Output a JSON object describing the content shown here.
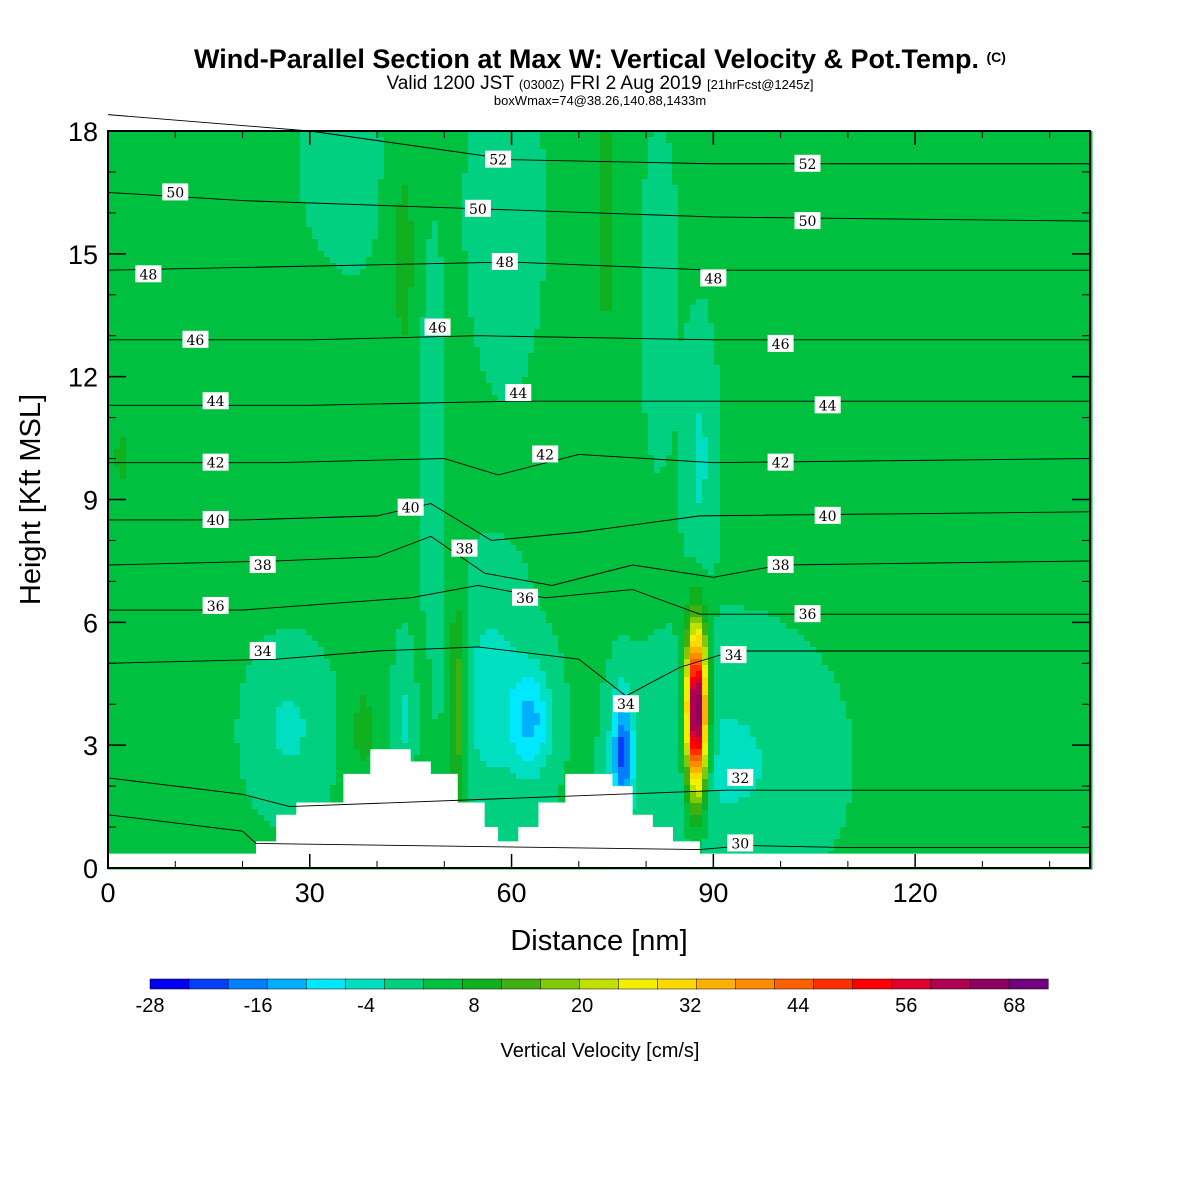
{
  "header": {
    "title": "Wind-Parallel Section at Max W: Vertical Velocity & Pot.Temp.",
    "copyright": "(C)",
    "valid_prefix": "Valid 1200 JST",
    "valid_utc": "(0300Z)",
    "valid_date": "FRI 2 Aug 2019",
    "forecast": "[21hrFcst@1245z]",
    "boxwmax": "boxWmax=74@38.26,140.88,1433m"
  },
  "chart_data": {
    "type": "contour-section",
    "xlabel": "Distance [nm]",
    "ylabel": "Height [Kft MSL]",
    "xlim": [
      0,
      146
    ],
    "ylim": [
      0,
      18
    ],
    "xticks": [
      0,
      30,
      60,
      90,
      120
    ],
    "yticks": [
      0,
      3,
      6,
      9,
      12,
      15,
      18
    ],
    "grid": false,
    "colorbar": {
      "label": "Vertical Velocity [cm/s]",
      "placement": "bottom",
      "tick_labels": [
        -28,
        -16,
        -4,
        8,
        20,
        32,
        44,
        56,
        68
      ],
      "colors": [
        "#0000f0",
        "#0040f8",
        "#0080ff",
        "#00b0ff",
        "#00e8ff",
        "#00e0c0",
        "#00d080",
        "#00c040",
        "#10b020",
        "#40b010",
        "#80c808",
        "#c0e000",
        "#f0f000",
        "#ffd800",
        "#ffb000",
        "#ff8c00",
        "#ff6000",
        "#ff3000",
        "#ff0000",
        "#e00030",
        "#b00050",
        "#900060",
        "#700080"
      ]
    },
    "terrain_kft": [
      [
        0,
        0.35
      ],
      [
        22,
        0.35
      ],
      [
        22,
        0.65
      ],
      [
        25,
        0.65
      ],
      [
        25,
        1.3
      ],
      [
        28,
        1.3
      ],
      [
        28,
        1.6
      ],
      [
        35,
        1.6
      ],
      [
        35,
        2.3
      ],
      [
        39,
        2.3
      ],
      [
        39,
        2.9
      ],
      [
        45,
        2.9
      ],
      [
        45,
        2.6
      ],
      [
        48,
        2.6
      ],
      [
        48,
        2.3
      ],
      [
        52,
        2.3
      ],
      [
        52,
        1.6
      ],
      [
        56,
        1.6
      ],
      [
        56,
        1.0
      ],
      [
        58,
        1.0
      ],
      [
        58,
        0.65
      ],
      [
        61,
        0.65
      ],
      [
        61,
        1.0
      ],
      [
        64,
        1.0
      ],
      [
        64,
        1.6
      ],
      [
        68,
        1.6
      ],
      [
        68,
        2.3
      ],
      [
        75,
        2.3
      ],
      [
        75,
        2.0
      ],
      [
        78,
        2.0
      ],
      [
        78,
        1.3
      ],
      [
        81,
        1.3
      ],
      [
        81,
        1.0
      ],
      [
        84,
        1.0
      ],
      [
        84,
        0.65
      ],
      [
        88,
        0.65
      ],
      [
        88,
        0.35
      ],
      [
        146,
        0.35
      ]
    ],
    "isentrope_label_values": [
      30,
      32,
      34,
      34,
      34,
      36,
      36,
      36,
      38,
      38,
      38,
      40,
      40,
      40,
      42,
      42,
      42,
      44,
      44,
      44,
      46,
      46,
      46,
      48,
      48,
      48,
      50,
      50,
      50,
      52,
      52
    ],
    "isentropes": [
      {
        "theta": 30,
        "pts": [
          [
            0,
            1.3
          ],
          [
            20,
            0.9
          ],
          [
            22,
            0.6
          ],
          [
            88,
            0.45
          ],
          [
            95,
            0.55
          ],
          [
            110,
            0.5
          ],
          [
            146,
            0.5
          ]
        ]
      },
      {
        "theta": 32,
        "pts": [
          [
            0,
            2.2
          ],
          [
            20,
            1.8
          ],
          [
            27,
            1.5
          ],
          [
            92,
            1.9
          ],
          [
            110,
            1.9
          ],
          [
            146,
            1.9
          ]
        ]
      },
      {
        "theta": 34,
        "pts": [
          [
            0,
            5.0
          ],
          [
            25,
            5.1
          ],
          [
            40,
            5.3
          ],
          [
            55,
            5.4
          ],
          [
            70,
            5.1
          ],
          [
            77,
            4.2
          ],
          [
            85,
            4.9
          ],
          [
            93,
            5.3
          ],
          [
            110,
            5.3
          ],
          [
            146,
            5.3
          ]
        ]
      },
      {
        "theta": 36,
        "pts": [
          [
            0,
            6.3
          ],
          [
            20,
            6.3
          ],
          [
            45,
            6.6
          ],
          [
            55,
            6.9
          ],
          [
            65,
            6.6
          ],
          [
            78,
            6.8
          ],
          [
            88,
            6.2
          ],
          [
            100,
            6.2
          ],
          [
            146,
            6.2
          ]
        ]
      },
      {
        "theta": 38,
        "pts": [
          [
            0,
            7.4
          ],
          [
            25,
            7.5
          ],
          [
            40,
            7.6
          ],
          [
            48,
            8.1
          ],
          [
            56,
            7.2
          ],
          [
            66,
            6.9
          ],
          [
            78,
            7.4
          ],
          [
            90,
            7.1
          ],
          [
            100,
            7.4
          ],
          [
            146,
            7.5
          ]
        ]
      },
      {
        "theta": 40,
        "pts": [
          [
            0,
            8.5
          ],
          [
            20,
            8.5
          ],
          [
            40,
            8.6
          ],
          [
            48,
            8.9
          ],
          [
            57,
            8.0
          ],
          [
            70,
            8.2
          ],
          [
            88,
            8.6
          ],
          [
            146,
            8.7
          ]
        ]
      },
      {
        "theta": 42,
        "pts": [
          [
            0,
            9.9
          ],
          [
            25,
            9.9
          ],
          [
            50,
            10.0
          ],
          [
            58,
            9.6
          ],
          [
            70,
            10.1
          ],
          [
            90,
            9.9
          ],
          [
            146,
            10.0
          ]
        ]
      },
      {
        "theta": 44,
        "pts": [
          [
            0,
            11.3
          ],
          [
            30,
            11.3
          ],
          [
            60,
            11.4
          ],
          [
            90,
            11.4
          ],
          [
            146,
            11.4
          ]
        ]
      },
      {
        "theta": 46,
        "pts": [
          [
            0,
            12.9
          ],
          [
            30,
            12.9
          ],
          [
            55,
            13.0
          ],
          [
            90,
            12.9
          ],
          [
            146,
            12.9
          ]
        ]
      },
      {
        "theta": 48,
        "pts": [
          [
            0,
            14.6
          ],
          [
            30,
            14.7
          ],
          [
            60,
            14.8
          ],
          [
            90,
            14.6
          ],
          [
            146,
            14.6
          ]
        ]
      },
      {
        "theta": 50,
        "pts": [
          [
            0,
            16.5
          ],
          [
            20,
            16.3
          ],
          [
            55,
            16.1
          ],
          [
            90,
            15.9
          ],
          [
            146,
            15.8
          ]
        ]
      },
      {
        "theta": 52,
        "pts": [
          [
            0,
            18.4
          ],
          [
            30,
            18.0
          ],
          [
            60,
            17.3
          ],
          [
            90,
            17.2
          ],
          [
            146,
            17.2
          ]
        ]
      }
    ],
    "isentrope_labels": [
      {
        "text": "30",
        "at": [
          94,
          0.6
        ]
      },
      {
        "text": "32",
        "at": [
          94,
          2.2
        ]
      },
      {
        "text": "34",
        "at": [
          23,
          5.3
        ]
      },
      {
        "text": "34",
        "at": [
          77,
          4.0
        ]
      },
      {
        "text": "34",
        "at": [
          93,
          5.2
        ]
      },
      {
        "text": "36",
        "at": [
          16,
          6.4
        ]
      },
      {
        "text": "36",
        "at": [
          62,
          6.6
        ]
      },
      {
        "text": "36",
        "at": [
          104,
          6.2
        ]
      },
      {
        "text": "38",
        "at": [
          23,
          7.4
        ]
      },
      {
        "text": "38",
        "at": [
          53,
          7.8
        ]
      },
      {
        "text": "38",
        "at": [
          100,
          7.4
        ]
      },
      {
        "text": "40",
        "at": [
          16,
          8.5
        ]
      },
      {
        "text": "40",
        "at": [
          45,
          8.8
        ]
      },
      {
        "text": "40",
        "at": [
          107,
          8.6
        ]
      },
      {
        "text": "42",
        "at": [
          16,
          9.9
        ]
      },
      {
        "text": "42",
        "at": [
          65,
          10.1
        ]
      },
      {
        "text": "42",
        "at": [
          100,
          9.9
        ]
      },
      {
        "text": "44",
        "at": [
          16,
          11.4
        ]
      },
      {
        "text": "44",
        "at": [
          61,
          11.6
        ]
      },
      {
        "text": "44",
        "at": [
          107,
          11.3
        ]
      },
      {
        "text": "46",
        "at": [
          13,
          12.9
        ]
      },
      {
        "text": "46",
        "at": [
          49,
          13.2
        ]
      },
      {
        "text": "46",
        "at": [
          100,
          12.8
        ]
      },
      {
        "text": "48",
        "at": [
          6,
          14.5
        ]
      },
      {
        "text": "48",
        "at": [
          59,
          14.8
        ]
      },
      {
        "text": "48",
        "at": [
          90,
          14.4
        ]
      },
      {
        "text": "50",
        "at": [
          10,
          16.5
        ]
      },
      {
        "text": "50",
        "at": [
          55,
          16.1
        ]
      },
      {
        "text": "50",
        "at": [
          104,
          15.8
        ]
      },
      {
        "text": "52",
        "at": [
          58,
          17.3
        ]
      },
      {
        "text": "52",
        "at": [
          104,
          17.2
        ]
      }
    ],
    "w_field_cm_s": [
      {
        "x": 87.5,
        "z": 3.8,
        "sx": 1.5,
        "sz": 1.9,
        "w": 74
      },
      {
        "x": 76.5,
        "z": 2.8,
        "sx": 1.6,
        "sz": 1.4,
        "w": -24
      },
      {
        "x": 63,
        "z": 3.6,
        "sx": 3,
        "sz": 1.3,
        "w": -14
      },
      {
        "x": 57,
        "z": 4.2,
        "sx": 5,
        "sz": 2.4,
        "w": -8
      },
      {
        "x": 52,
        "z": 4.0,
        "sx": 1.3,
        "sz": 2.4,
        "w": 14
      },
      {
        "x": 44,
        "z": 3.6,
        "sx": 1.3,
        "sz": 1.5,
        "w": -6
      },
      {
        "x": 38,
        "z": 3.4,
        "sx": 2.0,
        "sz": 1.2,
        "w": 6
      },
      {
        "x": 27,
        "z": 3.4,
        "sx": 5,
        "sz": 1.6,
        "w": -6
      },
      {
        "x": 92,
        "z": 2.6,
        "sx": 12,
        "sz": 2.4,
        "w": -6
      },
      {
        "x": 48,
        "z": 11,
        "sx": 1.5,
        "sz": 3.5,
        "w": -5
      },
      {
        "x": 44,
        "z": 15,
        "sx": 2.5,
        "sz": 4,
        "w": 5
      },
      {
        "x": 59,
        "z": 16,
        "sx": 4,
        "sz": 3,
        "w": -5
      },
      {
        "x": 74,
        "z": 16,
        "sx": 2,
        "sz": 4,
        "w": 6
      },
      {
        "x": 35,
        "z": 17,
        "sx": 5,
        "sz": 2,
        "w": -4
      },
      {
        "x": 20,
        "z": 12,
        "sx": 12,
        "sz": 3,
        "w": 4
      },
      {
        "x": 2,
        "z": 10,
        "sx": 3,
        "sz": 2,
        "w": 4
      },
      {
        "x": 88,
        "z": 10,
        "sx": 2,
        "sz": 2.5,
        "w": -6
      },
      {
        "x": 82,
        "z": 14,
        "sx": 2,
        "sz": 3,
        "w": -4
      }
    ]
  }
}
